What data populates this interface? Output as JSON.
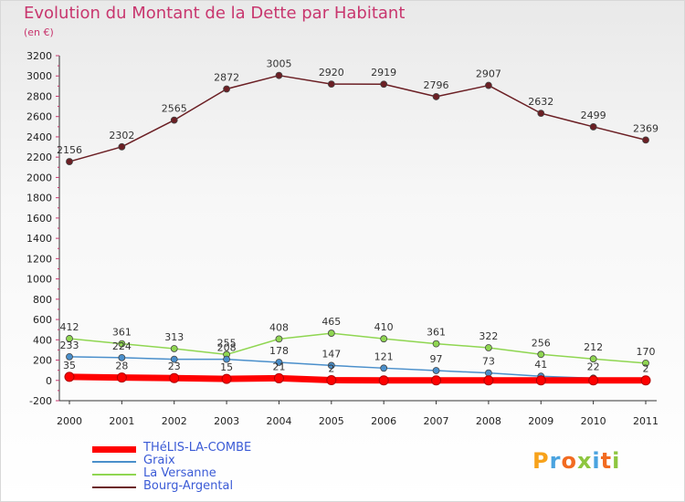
{
  "title": "Evolution du Montant de la Dette par Habitant",
  "subtitle": "(en €)",
  "logo": {
    "text": "Proxiti",
    "colors": [
      "#f7a21b",
      "#4aa3df",
      "#f26b21",
      "#8dc63f",
      "#4aa3df",
      "#f26b21",
      "#8dc63f"
    ]
  },
  "chart_data": {
    "type": "line",
    "x": [
      "2000",
      "2001",
      "2002",
      "2003",
      "2004",
      "2005",
      "2006",
      "2007",
      "2008",
      "2009",
      "2010",
      "2011"
    ],
    "ylim": [
      -200,
      3200
    ],
    "yticks": [
      "-200",
      "0",
      "200",
      "400",
      "600",
      "800",
      "1000",
      "1200",
      "1400",
      "1600",
      "1800",
      "2000",
      "2200",
      "2400",
      "2600",
      "2800",
      "3000",
      "3200"
    ],
    "grid": false,
    "legend_position": "bottom-left",
    "series": [
      {
        "name": "THéLIS-LA-COMBE",
        "color": "#ff0000",
        "values": [
          35,
          28,
          23,
          15,
          21,
          2,
          0,
          0,
          0,
          0,
          0,
          0
        ],
        "labels": [
          "35",
          "28",
          "23",
          "15",
          "21",
          "2",
          "",
          "",
          "",
          "",
          "",
          ""
        ]
      },
      {
        "name": "Graix",
        "color": "#4a8fcb",
        "values": [
          233,
          224,
          208,
          208,
          178,
          147,
          121,
          97,
          73,
          41,
          22,
          2
        ],
        "labels": [
          "233",
          "224",
          "",
          "208",
          "178",
          "147",
          "121",
          "97",
          "73",
          "41",
          "22",
          "2"
        ]
      },
      {
        "name": "La Versanne",
        "color": "#8fd651",
        "values": [
          412,
          361,
          313,
          255,
          408,
          465,
          410,
          361,
          322,
          256,
          212,
          170
        ],
        "labels": [
          "412",
          "361",
          "313",
          "255",
          "408",
          "465",
          "410",
          "361",
          "322",
          "256",
          "212",
          "170"
        ]
      },
      {
        "name": "Bourg-Argental",
        "color": "#6b1f24",
        "values": [
          2156,
          2302,
          2565,
          2872,
          3005,
          2920,
          2919,
          2796,
          2907,
          2632,
          2499,
          2369
        ],
        "labels": [
          "2156",
          "2302",
          "2565",
          "2872",
          "3005",
          "2920",
          "2919",
          "2796",
          "2907",
          "2632",
          "2499",
          "2369"
        ]
      }
    ]
  }
}
